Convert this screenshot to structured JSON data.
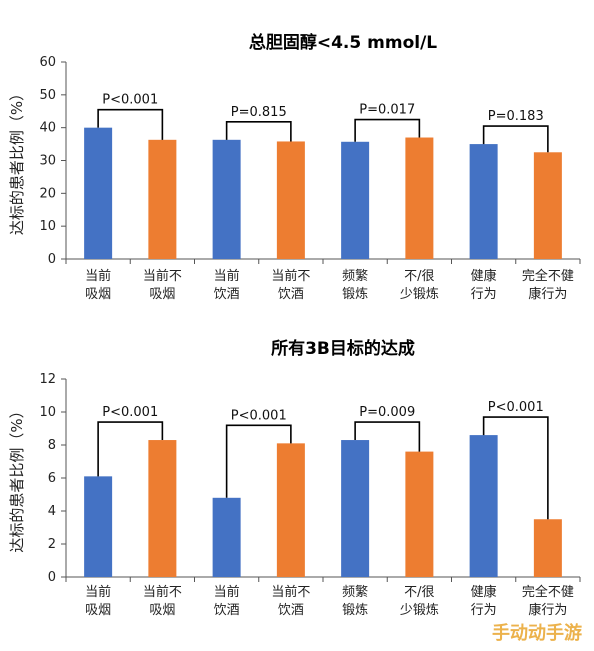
{
  "colors": {
    "current": "#4472C4",
    "other": "#ED7D31"
  },
  "watermark": "手动动手游",
  "chart_data": [
    {
      "type": "bar",
      "title": "总胆固醇<4.5 mmol/L",
      "ylabel": "达标的患者比例（%）",
      "ylim": [
        0,
        60
      ],
      "yticks": [
        0,
        10,
        20,
        30,
        40,
        50,
        60
      ],
      "categories": [
        [
          "当前",
          "吸烟"
        ],
        [
          "当前不",
          "吸烟"
        ],
        [
          "当前",
          "饮酒"
        ],
        [
          "当前不",
          "饮酒"
        ],
        [
          "频繁",
          "锻炼"
        ],
        [
          "不/很",
          "少锻炼"
        ],
        [
          "健康",
          "行为"
        ],
        [
          "完全不健",
          "康行为"
        ]
      ],
      "values": [
        40,
        36.3,
        36.3,
        35.8,
        35.7,
        37,
        35,
        32.5
      ],
      "pvalues": [
        "P<0.001",
        "P=0.815",
        "P=0.017",
        "P=0.183"
      ]
    },
    {
      "type": "bar",
      "title": "所有3B目标的达成",
      "ylabel": "达标的患者比例（%）",
      "ylim": [
        0,
        12
      ],
      "yticks": [
        0,
        2,
        4,
        6,
        8,
        10,
        12
      ],
      "categories": [
        [
          "当前",
          "吸烟"
        ],
        [
          "当前不",
          "吸烟"
        ],
        [
          "当前",
          "饮酒"
        ],
        [
          "当前不",
          "饮酒"
        ],
        [
          "频繁",
          "锻炼"
        ],
        [
          "不/很",
          "少锻炼"
        ],
        [
          "健康",
          "行为"
        ],
        [
          "完全不健",
          "康行为"
        ]
      ],
      "values": [
        6.1,
        8.3,
        4.8,
        8.1,
        8.3,
        7.6,
        8.6,
        3.5
      ],
      "pvalues": [
        "P<0.001",
        "P<0.001",
        "P=0.009",
        "P<0.001"
      ]
    }
  ]
}
